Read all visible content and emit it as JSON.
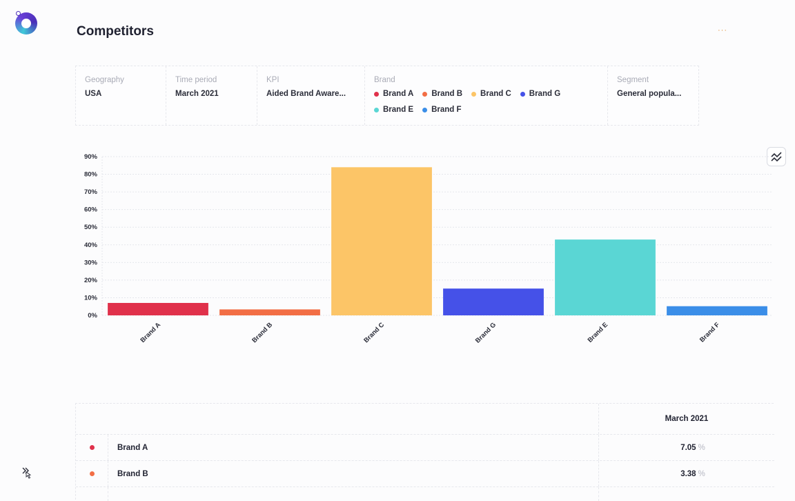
{
  "header": {
    "title": "Competitors",
    "more_label": "···"
  },
  "filters": {
    "geography": {
      "label": "Geography",
      "value": "USA"
    },
    "time_period": {
      "label": "Time period",
      "value": "March 2021"
    },
    "kpi": {
      "label": "KPI",
      "value": "Aided Brand Aware..."
    },
    "brand": {
      "label": "Brand",
      "items": [
        {
          "name": "Brand A",
          "color": "#e0314b"
        },
        {
          "name": "Brand B",
          "color": "#f26e45"
        },
        {
          "name": "Brand C",
          "color": "#fcc567"
        },
        {
          "name": "Brand G",
          "color": "#4551e8"
        },
        {
          "name": "Brand E",
          "color": "#5ad6d4"
        },
        {
          "name": "Brand F",
          "color": "#3b8ee8"
        }
      ]
    },
    "segment": {
      "label": "Segment",
      "value": "General popula..."
    }
  },
  "chart_toggle_icon": "line-chart-icon",
  "chart_data": {
    "type": "bar",
    "categories": [
      "Brand A",
      "Brand B",
      "Brand C",
      "Brand G",
      "Brand E",
      "Brand F"
    ],
    "values": [
      7.05,
      3.38,
      84,
      15.2,
      43,
      5.2
    ],
    "colors": [
      "#e0314b",
      "#f26e45",
      "#fcc567",
      "#4551e8",
      "#5ad6d4",
      "#3b8ee8"
    ],
    "ylim": [
      0,
      90
    ],
    "yticks": [
      "0%",
      "10%",
      "20%",
      "30%",
      "40%",
      "50%",
      "60%",
      "70%",
      "80%",
      "90%"
    ],
    "grid": true,
    "title": "",
    "xlabel": "",
    "ylabel": ""
  },
  "table": {
    "column_header": "March 2021",
    "rows": [
      {
        "name": "Brand A",
        "color": "#e0314b",
        "value": "7.05",
        "unit": "%"
      },
      {
        "name": "Brand B",
        "color": "#f26e45",
        "value": "3.38",
        "unit": "%"
      }
    ]
  },
  "collapse_icon": "double-chevron-icon"
}
